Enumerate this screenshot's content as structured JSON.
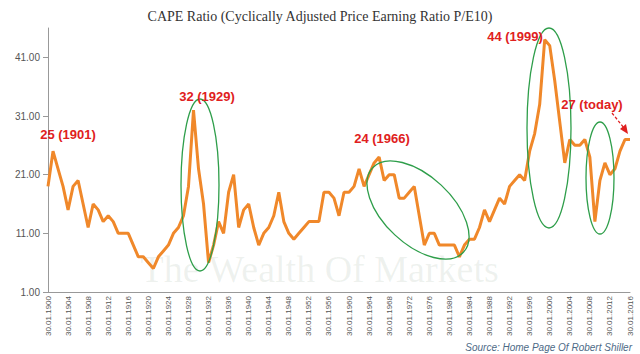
{
  "chart_data": {
    "type": "line",
    "title": "CAPE Ratio (Cyclically Adjusted Price Earning Ratio P/E10)",
    "categories": [
      "30.01.1900",
      null,
      null,
      null,
      "30.01.1904",
      null,
      null,
      null,
      "30.01.1908",
      null,
      null,
      null,
      "30.01.1912",
      null,
      null,
      null,
      "30.01.1916",
      null,
      null,
      null,
      "30.01.1920",
      null,
      null,
      null,
      "30.01.1924",
      null,
      null,
      null,
      "30.01.1928",
      null,
      null,
      null,
      "30.01.1932",
      null,
      null,
      null,
      "30.01.1936",
      null,
      null,
      null,
      "30.01.1940",
      null,
      null,
      null,
      "30.01.1944",
      null,
      null,
      null,
      "30.01.1948",
      null,
      null,
      null,
      "30.01.1952",
      null,
      null,
      null,
      "30.01.1956",
      null,
      null,
      null,
      "30.01.1960",
      null,
      null,
      null,
      "30.01.1964",
      null,
      null,
      null,
      "30.01.1968",
      null,
      null,
      null,
      "30.01.1972",
      null,
      null,
      null,
      "30.01.1976",
      null,
      null,
      null,
      "30.01.1980",
      null,
      null,
      null,
      "30.01.1984",
      null,
      null,
      null,
      "30.01.1988",
      null,
      null,
      null,
      "30.01.1992",
      null,
      null,
      null,
      "30.01.1996",
      null,
      null,
      null,
      "30.01.2000",
      null,
      null,
      null,
      "30.01.2004",
      null,
      null,
      null,
      "30.01.2008",
      null,
      null,
      null,
      "30.01.2012",
      null,
      null,
      null,
      "30.01.2016"
    ],
    "values": [
      19,
      25,
      22,
      19,
      15,
      19,
      20,
      16,
      12,
      16,
      15,
      13,
      14,
      13,
      11,
      11,
      11,
      9,
      7,
      7,
      6,
      5,
      7,
      8,
      9,
      11,
      12,
      14,
      19,
      32,
      22,
      16,
      6,
      9,
      13,
      11,
      18,
      21,
      12,
      15,
      16,
      12,
      9,
      11,
      12,
      14,
      18,
      13,
      11,
      10,
      11,
      12,
      13,
      13,
      13,
      18,
      18,
      17,
      14,
      18,
      18,
      19,
      22,
      19,
      21,
      23,
      24,
      20,
      21,
      21,
      17,
      17,
      18,
      19,
      14,
      9,
      11,
      11,
      9,
      9,
      9,
      9,
      7,
      9,
      10,
      10,
      12,
      15,
      13,
      15,
      17,
      16,
      19,
      20,
      21,
      20,
      25,
      28,
      33,
      44,
      43,
      37,
      30,
      23,
      27,
      26,
      26,
      27,
      24,
      13,
      20,
      23,
      21,
      22,
      25,
      27,
      27
    ],
    "color": "#f0882a",
    "ylim": [
      1,
      46
    ],
    "yticks": [
      {
        "value": 1,
        "label": "1.00"
      },
      {
        "value": 11,
        "label": "11.00"
      },
      {
        "value": 21,
        "label": "21.00"
      },
      {
        "value": 31,
        "label": "31.00"
      },
      {
        "value": 41,
        "label": "41.00"
      }
    ],
    "grid": false,
    "annotations": [
      "25 (1901)",
      "32 (1929)",
      "24 (1966)",
      "44 (1999)",
      "27 (today)"
    ],
    "source": "Source: Home Page Of Robert Shiller",
    "watermark": "The Wealth Of Markets"
  }
}
